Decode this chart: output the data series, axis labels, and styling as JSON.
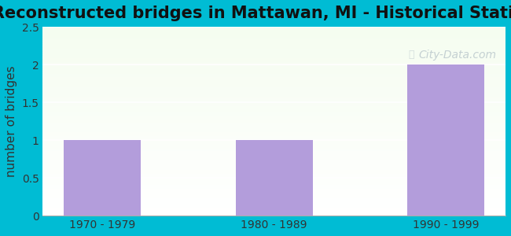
{
  "title": "Reconstructed bridges in Mattawan, MI - Historical Statistics",
  "categories": [
    "1970 - 1979",
    "1980 - 1989",
    "1990 - 1999"
  ],
  "values": [
    1,
    1,
    2
  ],
  "bar_color": "#b39ddb",
  "ylabel": "number of bridges",
  "ylim": [
    0,
    2.5
  ],
  "yticks": [
    0,
    0.5,
    1,
    1.5,
    2,
    2.5
  ],
  "bg_color_top": "#e8f5e9",
  "bg_color_bottom": "#f1f8e9",
  "outer_bg": "#00bcd4",
  "title_fontsize": 15,
  "axis_label_fontsize": 11,
  "tick_fontsize": 10,
  "watermark_text": "City-Data.com"
}
